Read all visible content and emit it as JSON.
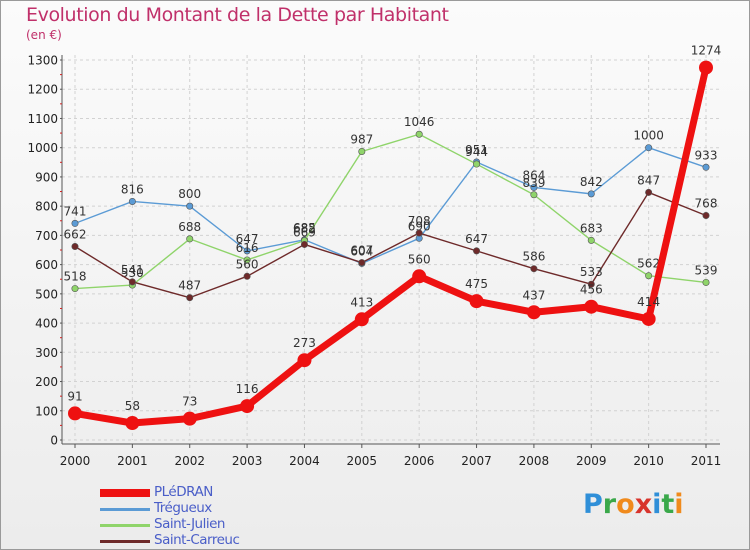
{
  "header": {
    "title": "Evolution du Montant de la Dette par Habitant",
    "subtitle": "(en €)"
  },
  "logo": {
    "letters": [
      "P",
      "r",
      "o",
      "x",
      "i",
      "t",
      "i"
    ],
    "colors": [
      "#2f8fd8",
      "#3aa84a",
      "#f08a1c",
      "#d8342c",
      "#2f8fd8",
      "#3aa84a",
      "#f08a1c"
    ]
  },
  "chart_data": {
    "type": "line",
    "title": "Evolution du Montant de la Dette par Habitant",
    "ylabel": "",
    "xlabel": "",
    "ylim": [
      0,
      1300
    ],
    "yticks": [
      "0",
      "100",
      "200",
      "300",
      "400",
      "500",
      "600",
      "700",
      "800",
      "900",
      "1000",
      "1100",
      "1200",
      "1300"
    ],
    "categories": [
      "2000",
      "2001",
      "2002",
      "2003",
      "2004",
      "2005",
      "2006",
      "2007",
      "2008",
      "2009",
      "2010",
      "2011"
    ],
    "grid": true,
    "series": [
      {
        "name": "Trégueux",
        "color": "#5b9bd5",
        "values": [
          741,
          816,
          800,
          647,
          685,
          604,
          690,
          951,
          864,
          842,
          1000,
          933
        ]
      },
      {
        "name": "Saint-Julien",
        "color": "#8fd46a",
        "values": [
          518,
          530,
          688,
          616,
          682,
          987,
          1046,
          944,
          839,
          683,
          562,
          539
        ]
      },
      {
        "name": "Saint-Carreuc",
        "color": "#6e2a2a",
        "values": [
          662,
          541,
          487,
          560,
          669,
          607,
          708,
          647,
          586,
          533,
          847,
          768
        ]
      },
      {
        "name": "PLéDRAN",
        "color": "#ee1111",
        "values": [
          91,
          58,
          73,
          116,
          273,
          413,
          560,
          475,
          437,
          456,
          414,
          1274
        ]
      }
    ]
  }
}
